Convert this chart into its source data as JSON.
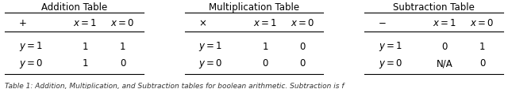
{
  "tables": [
    {
      "title": "Addition Table",
      "op_symbol": "+",
      "col_headers": [
        "$x = 1$",
        "$x = 0$"
      ],
      "row_headers": [
        "$y = 1$",
        "$y = 0$"
      ],
      "data": [
        [
          "1",
          "1"
        ],
        [
          "1",
          "0"
        ]
      ]
    },
    {
      "title": "Multiplication Table",
      "op_symbol": "×",
      "col_headers": [
        "$x = 1$",
        "$x = 0$"
      ],
      "row_headers": [
        "$y = 1$",
        "$y = 0$"
      ],
      "data": [
        [
          "1",
          "0"
        ],
        [
          "0",
          "0"
        ]
      ]
    },
    {
      "title": "Subtraction Table",
      "op_symbol": "−",
      "col_headers": [
        "$x = 1$",
        "$x = 0$"
      ],
      "row_headers": [
        "$y = 1$",
        "$y = 0$"
      ],
      "data": [
        [
          "0",
          "1"
        ],
        [
          "N/A",
          "0"
        ]
      ]
    }
  ],
  "caption": "Table 1: Addition, Multiplication, and Subtraction tables for boolean arithmetic. Subtraction is f",
  "bg_color": "#ffffff",
  "text_color": "#000000",
  "fontsize": 8.5,
  "caption_fontsize": 6.5
}
